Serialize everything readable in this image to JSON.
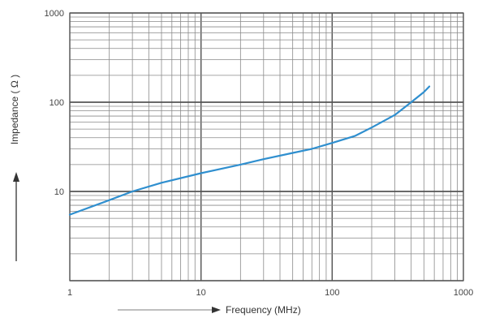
{
  "chart_data": {
    "type": "line",
    "title": "",
    "xlabel": "Frequency (MHz)",
    "ylabel": "Impedance ( Ω )",
    "xscale": "log",
    "yscale": "log",
    "xlim": [
      1,
      1000
    ],
    "ylim": [
      1,
      1000
    ],
    "grid": true,
    "x_tick_labels": [
      "1",
      "10",
      "100",
      "1000"
    ],
    "y_tick_labels": [
      "10",
      "100",
      "1000"
    ],
    "x_ticks": [
      1,
      10,
      100,
      1000
    ],
    "y_ticks": [
      10,
      100,
      1000
    ],
    "series": [
      {
        "color": "#2f8fcf",
        "x": [
          1,
          2,
          3,
          5,
          10,
          20,
          30,
          50,
          70,
          100,
          150,
          200,
          300,
          400,
          500,
          550
        ],
        "y": [
          5.5,
          8,
          10,
          12.5,
          16,
          20,
          23,
          27,
          30,
          35,
          42,
          52,
          72,
          100,
          130,
          150
        ]
      }
    ],
    "axis_arrows": {
      "x": "right",
      "y": "up"
    }
  }
}
